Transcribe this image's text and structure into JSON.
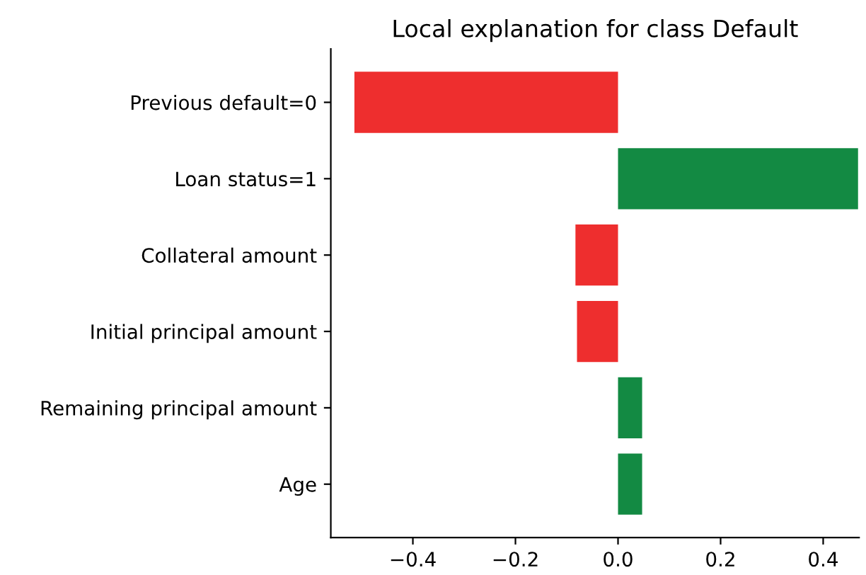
{
  "chart_data": {
    "type": "bar",
    "orientation": "horizontal",
    "title": "Local explanation for class Default",
    "categories": [
      "Previous default=0",
      "Loan status=1",
      "Collateral amount",
      "Initial principal amount",
      "Remaining principal amount",
      "Age"
    ],
    "values": [
      -0.514,
      0.468,
      -0.083,
      -0.08,
      0.047,
      0.047
    ],
    "colors": [
      "#ee2e2e",
      "#138a43",
      "#ee2e2e",
      "#ee2e2e",
      "#138a43",
      "#138a43"
    ],
    "xlim": [
      -0.56,
      0.47
    ],
    "xticks": [
      {
        "value": -0.4,
        "label": "−0.4"
      },
      {
        "value": -0.2,
        "label": "−0.2"
      },
      {
        "value": 0.0,
        "label": "0.0"
      },
      {
        "value": 0.2,
        "label": "0.2"
      },
      {
        "value": 0.4,
        "label": "0.4"
      }
    ],
    "grid": false,
    "legend": false
  }
}
